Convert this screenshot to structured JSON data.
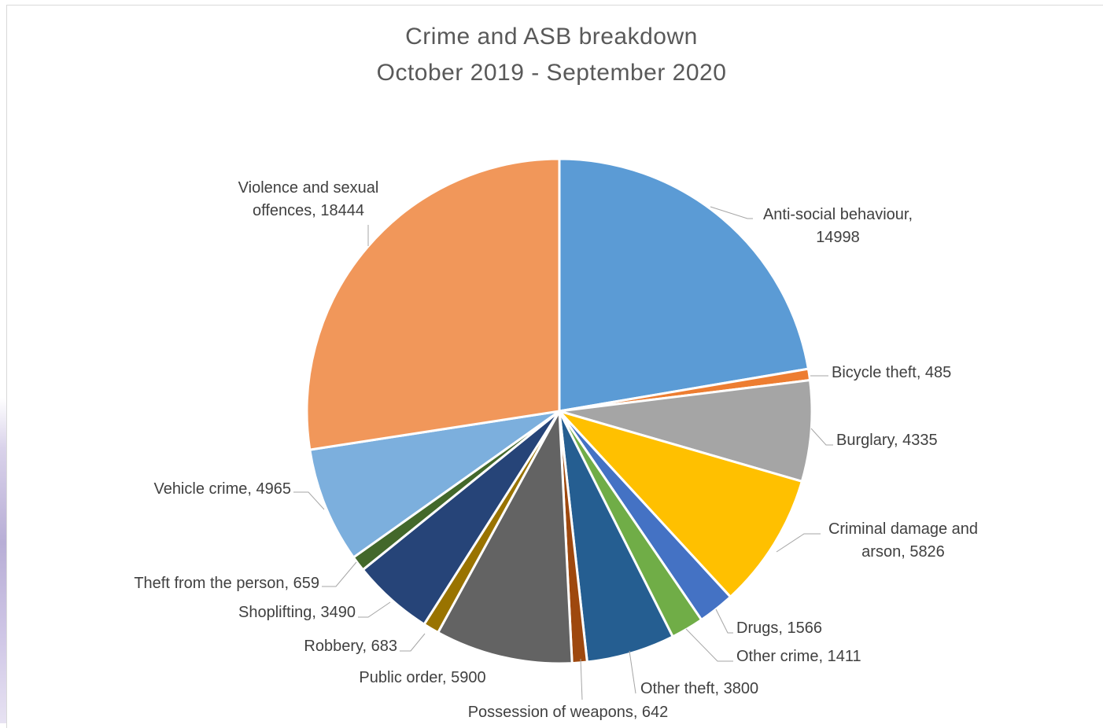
{
  "chart_data": {
    "type": "pie",
    "title": "Crime and ASB breakdown",
    "subtitle": "October 2019 - September 2020",
    "categories": [
      "Anti-social behaviour",
      "Bicycle theft",
      "Burglary",
      "Criminal damage and arson",
      "Drugs",
      "Other crime",
      "Other theft",
      "Possession of weapons",
      "Public order",
      "Robbery",
      "Shoplifting",
      "Theft from the person",
      "Vehicle crime",
      "Violence and sexual offences"
    ],
    "values": [
      14998,
      485,
      4335,
      5826,
      1566,
      1411,
      3800,
      642,
      5900,
      683,
      3490,
      659,
      4965,
      18444
    ],
    "colors": [
      "#5b9bd5",
      "#ed7d31",
      "#a5a5a5",
      "#ffc000",
      "#4472c4",
      "#70ad47",
      "#255e91",
      "#9e480e",
      "#636363",
      "#997300",
      "#264478",
      "#43682b",
      "#7cafdd",
      "#f1975a"
    ],
    "labels": [
      [
        "Anti-social behaviour,",
        "14998"
      ],
      [
        "Bicycle theft, 485"
      ],
      [
        "Burglary, 4335"
      ],
      [
        "Criminal damage and",
        "arson, 5826"
      ],
      [
        "Drugs, 1566"
      ],
      [
        "Other crime, 1411"
      ],
      [
        "Other theft, 3800"
      ],
      [
        "Possession of weapons, 642"
      ],
      [
        "Public order, 5900"
      ],
      [
        "Robbery, 683"
      ],
      [
        "Shoplifting, 3490"
      ],
      [
        "Theft from the person, 659"
      ],
      [
        "Vehicle crime, 4965"
      ],
      [
        "Violence and sexual",
        "offences, 18444"
      ]
    ],
    "legend": "none"
  }
}
